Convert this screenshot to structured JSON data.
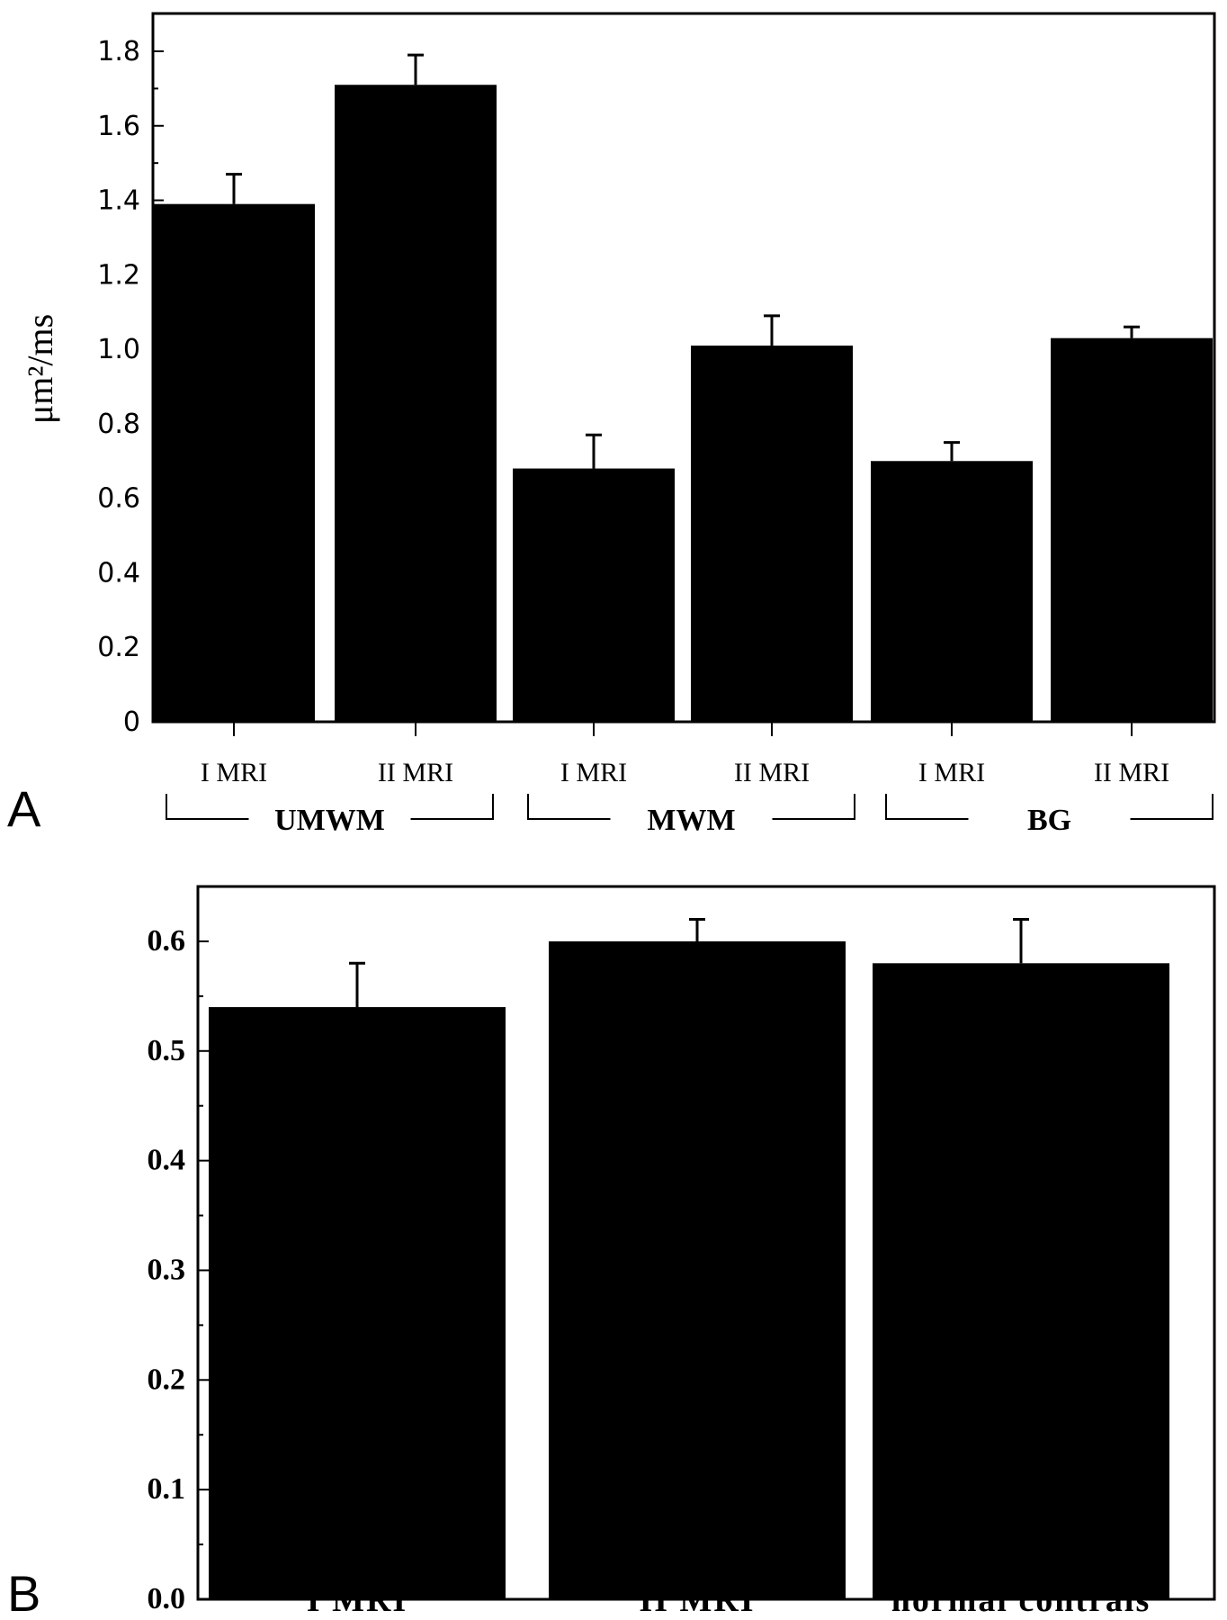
{
  "chart_data": [
    {
      "panel_label": "A",
      "type": "bar",
      "ylabel": "μm²/ms",
      "ylim": [
        0,
        1.8
      ],
      "yticks": [
        "0",
        "0.2",
        "0.4",
        "0.6",
        "0.8",
        "1.0",
        "1.2",
        "1.4",
        "1.6",
        "1.8"
      ],
      "categories": [
        "I MRI",
        "II MRI",
        "I MRI",
        "II MRI",
        "I MRI",
        "II MRI"
      ],
      "groups": [
        "UMWM",
        "MWM",
        "BG"
      ],
      "values": [
        1.39,
        1.71,
        0.68,
        1.01,
        0.7,
        1.03
      ],
      "errors": [
        0.08,
        0.08,
        0.09,
        0.08,
        0.05,
        0.03
      ],
      "bar_color": "#000000",
      "grid": false
    },
    {
      "panel_label": "B",
      "type": "bar",
      "ylim": [
        0,
        0.65
      ],
      "yticks": [
        "0.0",
        "0.1",
        "0.2",
        "0.3",
        "0.4",
        "0.5",
        "0.6"
      ],
      "categories": [
        "I MRI",
        "II MRI",
        "normal contrals"
      ],
      "values": [
        0.54,
        0.6,
        0.58
      ],
      "errors": [
        0.04,
        0.02,
        0.04
      ],
      "bar_color": "#000000",
      "grid": false
    }
  ]
}
